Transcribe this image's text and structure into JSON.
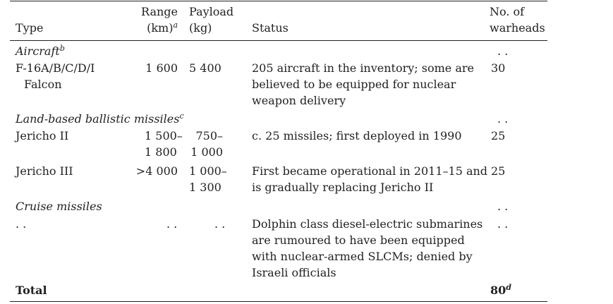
{
  "header": {
    "type": "Type",
    "range_line1": "Range",
    "range_line2": "(km)",
    "range_sup": "a",
    "payload_line1": "Payload",
    "payload_line2": "(kg)",
    "status": "Status",
    "warheads_line1": "No. of",
    "warheads_line2": "warheads"
  },
  "sections": {
    "aircraft": {
      "label": "Aircraft",
      "sup": "b",
      "warheads": ". ."
    },
    "land": {
      "label": "Land-based ballistic missiles",
      "sup": "c",
      "warheads": ". ."
    },
    "cruise": {
      "label": "Cruise missiles",
      "warheads": ". ."
    }
  },
  "rows": {
    "f16": {
      "type_line1": "F-16A/B/C/D/I",
      "type_line2": "Falcon",
      "range": "1 600",
      "payload": "5 400",
      "status_line1": "205 aircraft in the inventory; some are",
      "status_line2": "believed to be equipped for nuclear",
      "status_line3": "weapon delivery",
      "warheads": "30"
    },
    "jericho2": {
      "type": "Jericho II",
      "range_line1": "1 500–",
      "range_line2": "1 800",
      "payload_line1": "750–",
      "payload_line2": "1 000",
      "status": "c. 25 missiles; first deployed in 1990",
      "warheads": "25"
    },
    "jericho3": {
      "type": "Jericho III",
      "range": ">4 000",
      "payload_line1": "1 000–",
      "payload_line2": "1 300",
      "status_line1": "First became operational in 2011–15 and",
      "status_line2": "is gradually replacing Jericho II",
      "warheads": "25"
    },
    "cruise": {
      "type": ". .",
      "range": ". .",
      "payload": ". .",
      "status_line1": "Dolphin class diesel-electric submarines",
      "status_line2": "are rumoured to have been equipped",
      "status_line3": "with nuclear-armed SLCMs; denied by",
      "status_line4": "Israeli officials",
      "warheads": ". ."
    }
  },
  "total": {
    "label": "Total",
    "warheads": "80",
    "warheads_sup": "d"
  }
}
